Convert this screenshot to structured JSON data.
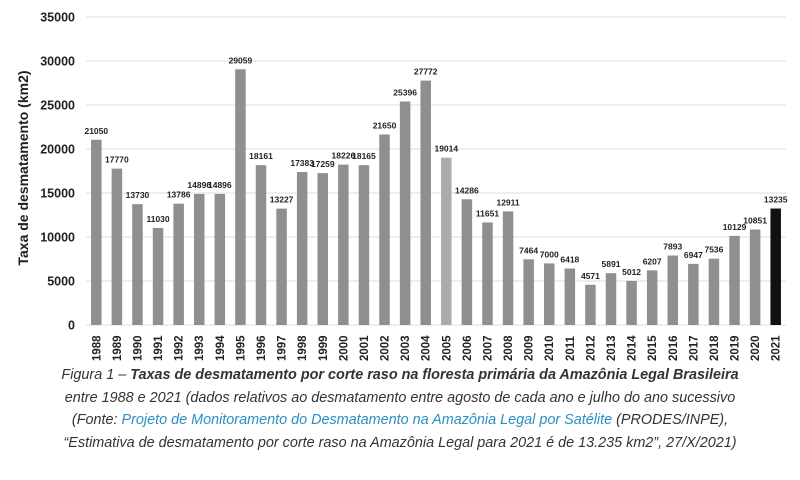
{
  "chart_data": {
    "type": "bar",
    "ylabel": "Taxa de desmatamento (km2)",
    "ylim": [
      0,
      35000
    ],
    "yticks": [
      0,
      5000,
      10000,
      15000,
      20000,
      25000,
      30000,
      35000
    ],
    "grid": true,
    "categories": [
      "1988",
      "1989",
      "1990",
      "1991",
      "1992",
      "1993",
      "1994",
      "1995",
      "1996",
      "1997",
      "1998",
      "1999",
      "2000",
      "2001",
      "2002",
      "2003",
      "2004",
      "2005",
      "2006",
      "2007",
      "2008",
      "2009",
      "2010",
      "2011",
      "2012",
      "2013",
      "2014",
      "2015",
      "2016",
      "2017",
      "2018",
      "2019",
      "2020",
      "2021"
    ],
    "values": [
      21050,
      17770,
      13730,
      11030,
      13786,
      14896,
      14896,
      29059,
      18161,
      13227,
      17383,
      17259,
      18226,
      18165,
      21650,
      25396,
      27772,
      19014,
      14286,
      11651,
      12911,
      7464,
      7000,
      6418,
      4571,
      5891,
      5012,
      6207,
      7893,
      6947,
      7536,
      10129,
      10851,
      13235
    ]
  },
  "colors": {
    "bar_default": "#8f8f8f",
    "bar_2005": "#ababab",
    "bar_2021": "#111111",
    "grid": "#dddddd",
    "link": "#2a8fc4"
  },
  "caption": {
    "line1_prefix": "Figura 1 – ",
    "line1_bold": "Taxas de desmatamento por corte raso na floresta primária da Amazônia Legal Brasileira",
    "line2": "entre 1988 e 2021 (dados relativos ao desmatamento entre agosto de cada ano e julho do ano sucessivo",
    "line3_prefix": "(Fonte: ",
    "line3_link": "Projeto de Monitoramento do Desmatamento na Amazônia Legal por Satélite",
    "line3_suffix": " (PRODES/INPE),",
    "line4": "“Estimativa de desmatamento por corte raso na Amazônia Legal para 2021 é de 13.235 km2”, 27/X/2021)"
  }
}
